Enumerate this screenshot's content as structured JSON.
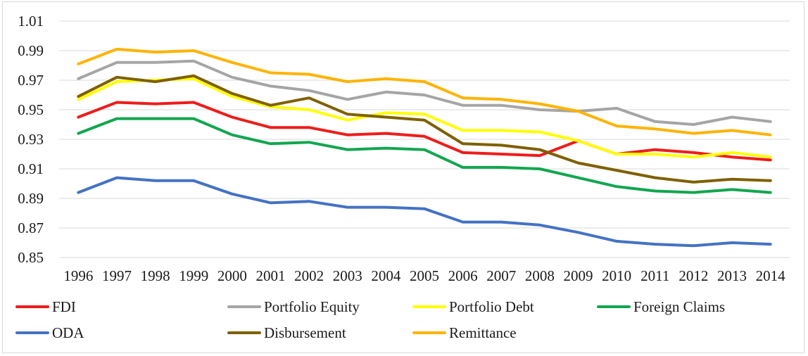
{
  "chart_data": {
    "type": "line",
    "title": "",
    "xlabel": "",
    "ylabel": "",
    "x": [
      "1996",
      "1997",
      "1998",
      "1999",
      "2000",
      "2001",
      "2002",
      "2003",
      "2004",
      "2005",
      "2006",
      "2007",
      "2008",
      "2009",
      "2010",
      "2011",
      "2012",
      "2013",
      "2014"
    ],
    "ylim": [
      0.85,
      1.01
    ],
    "yticks": [
      "0.85",
      "0.87",
      "0.89",
      "0.91",
      "0.93",
      "0.95",
      "0.97",
      "0.99",
      "1.01"
    ],
    "grid": "horizontal",
    "legend_position": "bottom",
    "series": [
      {
        "name": "FDI",
        "color": "#ee1c1c",
        "values": [
          0.945,
          0.955,
          0.954,
          0.955,
          0.945,
          0.938,
          0.938,
          0.933,
          0.934,
          0.932,
          0.921,
          0.92,
          0.919,
          0.929,
          0.92,
          0.923,
          0.921,
          0.918,
          0.916
        ]
      },
      {
        "name": "Portfolio Equity",
        "color": "#a5a5a5",
        "values": [
          0.971,
          0.982,
          0.982,
          0.983,
          0.972,
          0.966,
          0.963,
          0.957,
          0.962,
          0.96,
          0.953,
          0.953,
          0.95,
          0.949,
          0.951,
          0.942,
          0.94,
          0.945,
          0.942
        ]
      },
      {
        "name": "Portfolio Debt",
        "color": "#ffff00",
        "values": [
          0.957,
          0.969,
          0.97,
          0.971,
          0.959,
          0.952,
          0.95,
          0.943,
          0.948,
          0.947,
          0.936,
          0.936,
          0.935,
          0.929,
          0.92,
          0.92,
          0.918,
          0.921,
          0.918
        ]
      },
      {
        "name": "Foreign Claims",
        "color": "#12a650",
        "values": [
          0.934,
          0.944,
          0.944,
          0.944,
          0.933,
          0.927,
          0.928,
          0.923,
          0.924,
          0.923,
          0.911,
          0.911,
          0.91,
          0.904,
          0.898,
          0.895,
          0.894,
          0.896,
          0.894
        ]
      },
      {
        "name": "ODA",
        "color": "#4472c4",
        "values": [
          0.894,
          0.904,
          0.902,
          0.902,
          0.893,
          0.887,
          0.888,
          0.884,
          0.884,
          0.883,
          0.874,
          0.874,
          0.872,
          0.867,
          0.861,
          0.859,
          0.858,
          0.86,
          0.859
        ]
      },
      {
        "name": "Disbursement",
        "color": "#7f6000",
        "values": [
          0.959,
          0.972,
          0.969,
          0.973,
          0.961,
          0.953,
          0.958,
          0.947,
          0.945,
          0.943,
          0.927,
          0.926,
          0.923,
          0.914,
          0.909,
          0.904,
          0.901,
          0.903,
          0.902
        ]
      },
      {
        "name": "Remittance",
        "color": "#ffb300",
        "values": [
          0.981,
          0.991,
          0.989,
          0.99,
          0.982,
          0.975,
          0.974,
          0.969,
          0.971,
          0.969,
          0.958,
          0.957,
          0.954,
          0.949,
          0.939,
          0.937,
          0.934,
          0.936,
          0.933
        ]
      }
    ]
  }
}
